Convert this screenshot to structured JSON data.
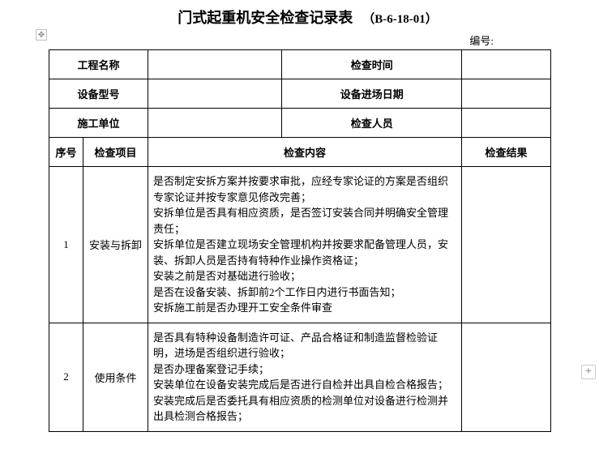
{
  "title": "门式起重机安全检查记录表",
  "code": "（B-6-18-01）",
  "serial_label": "编号:",
  "info": {
    "project_name_label": "工程名称",
    "project_name_value": "",
    "check_time_label": "检查时间",
    "check_time_value": "",
    "equip_model_label": "设备型号",
    "equip_model_value": "",
    "entry_date_label": "设备进场日期",
    "entry_date_value": "",
    "constructor_label": "施工单位",
    "constructor_value": "",
    "inspector_label": "检查人员",
    "inspector_value": ""
  },
  "columns": {
    "seq": "序号",
    "item": "检查项目",
    "content": "检查内容",
    "result": "检查结果"
  },
  "rows": [
    {
      "seq": "1",
      "item": "安装与拆卸",
      "content": "是否制定安拆方案并按要求审批，应经专家论证的方案是否组织专家论证并按专家意见修改完善；\n安拆单位是否具有相应资质，是否签订安装合同并明确安全管理责任；\n安拆单位是否建立现场安全管理机构并按要求配备管理人员，安装、拆卸人员是否持有特种作业操作资格证；\n安装之前是否对基础进行验收；\n是否在设备安装、拆卸前2个工作日内进行书面告知；\n安拆施工前是否办理开工安全条件审查",
      "result": ""
    },
    {
      "seq": "2",
      "item": "使用条件",
      "content": "是否具有特种设备制造许可证、产品合格证和制造监督检验证明，进场是否组织进行验收；\n是否办理备案登记手续；\n安装单位在设备安装完成后是否进行自检并出具自检合格报告；\n安装完成后是否委托具有相应资质的检测单位对设备进行检测并出具检测合格报告；",
      "result": ""
    }
  ],
  "colors": {
    "border": "#000000",
    "background": "#ffffff",
    "marker_border": "#bfbfbf"
  }
}
